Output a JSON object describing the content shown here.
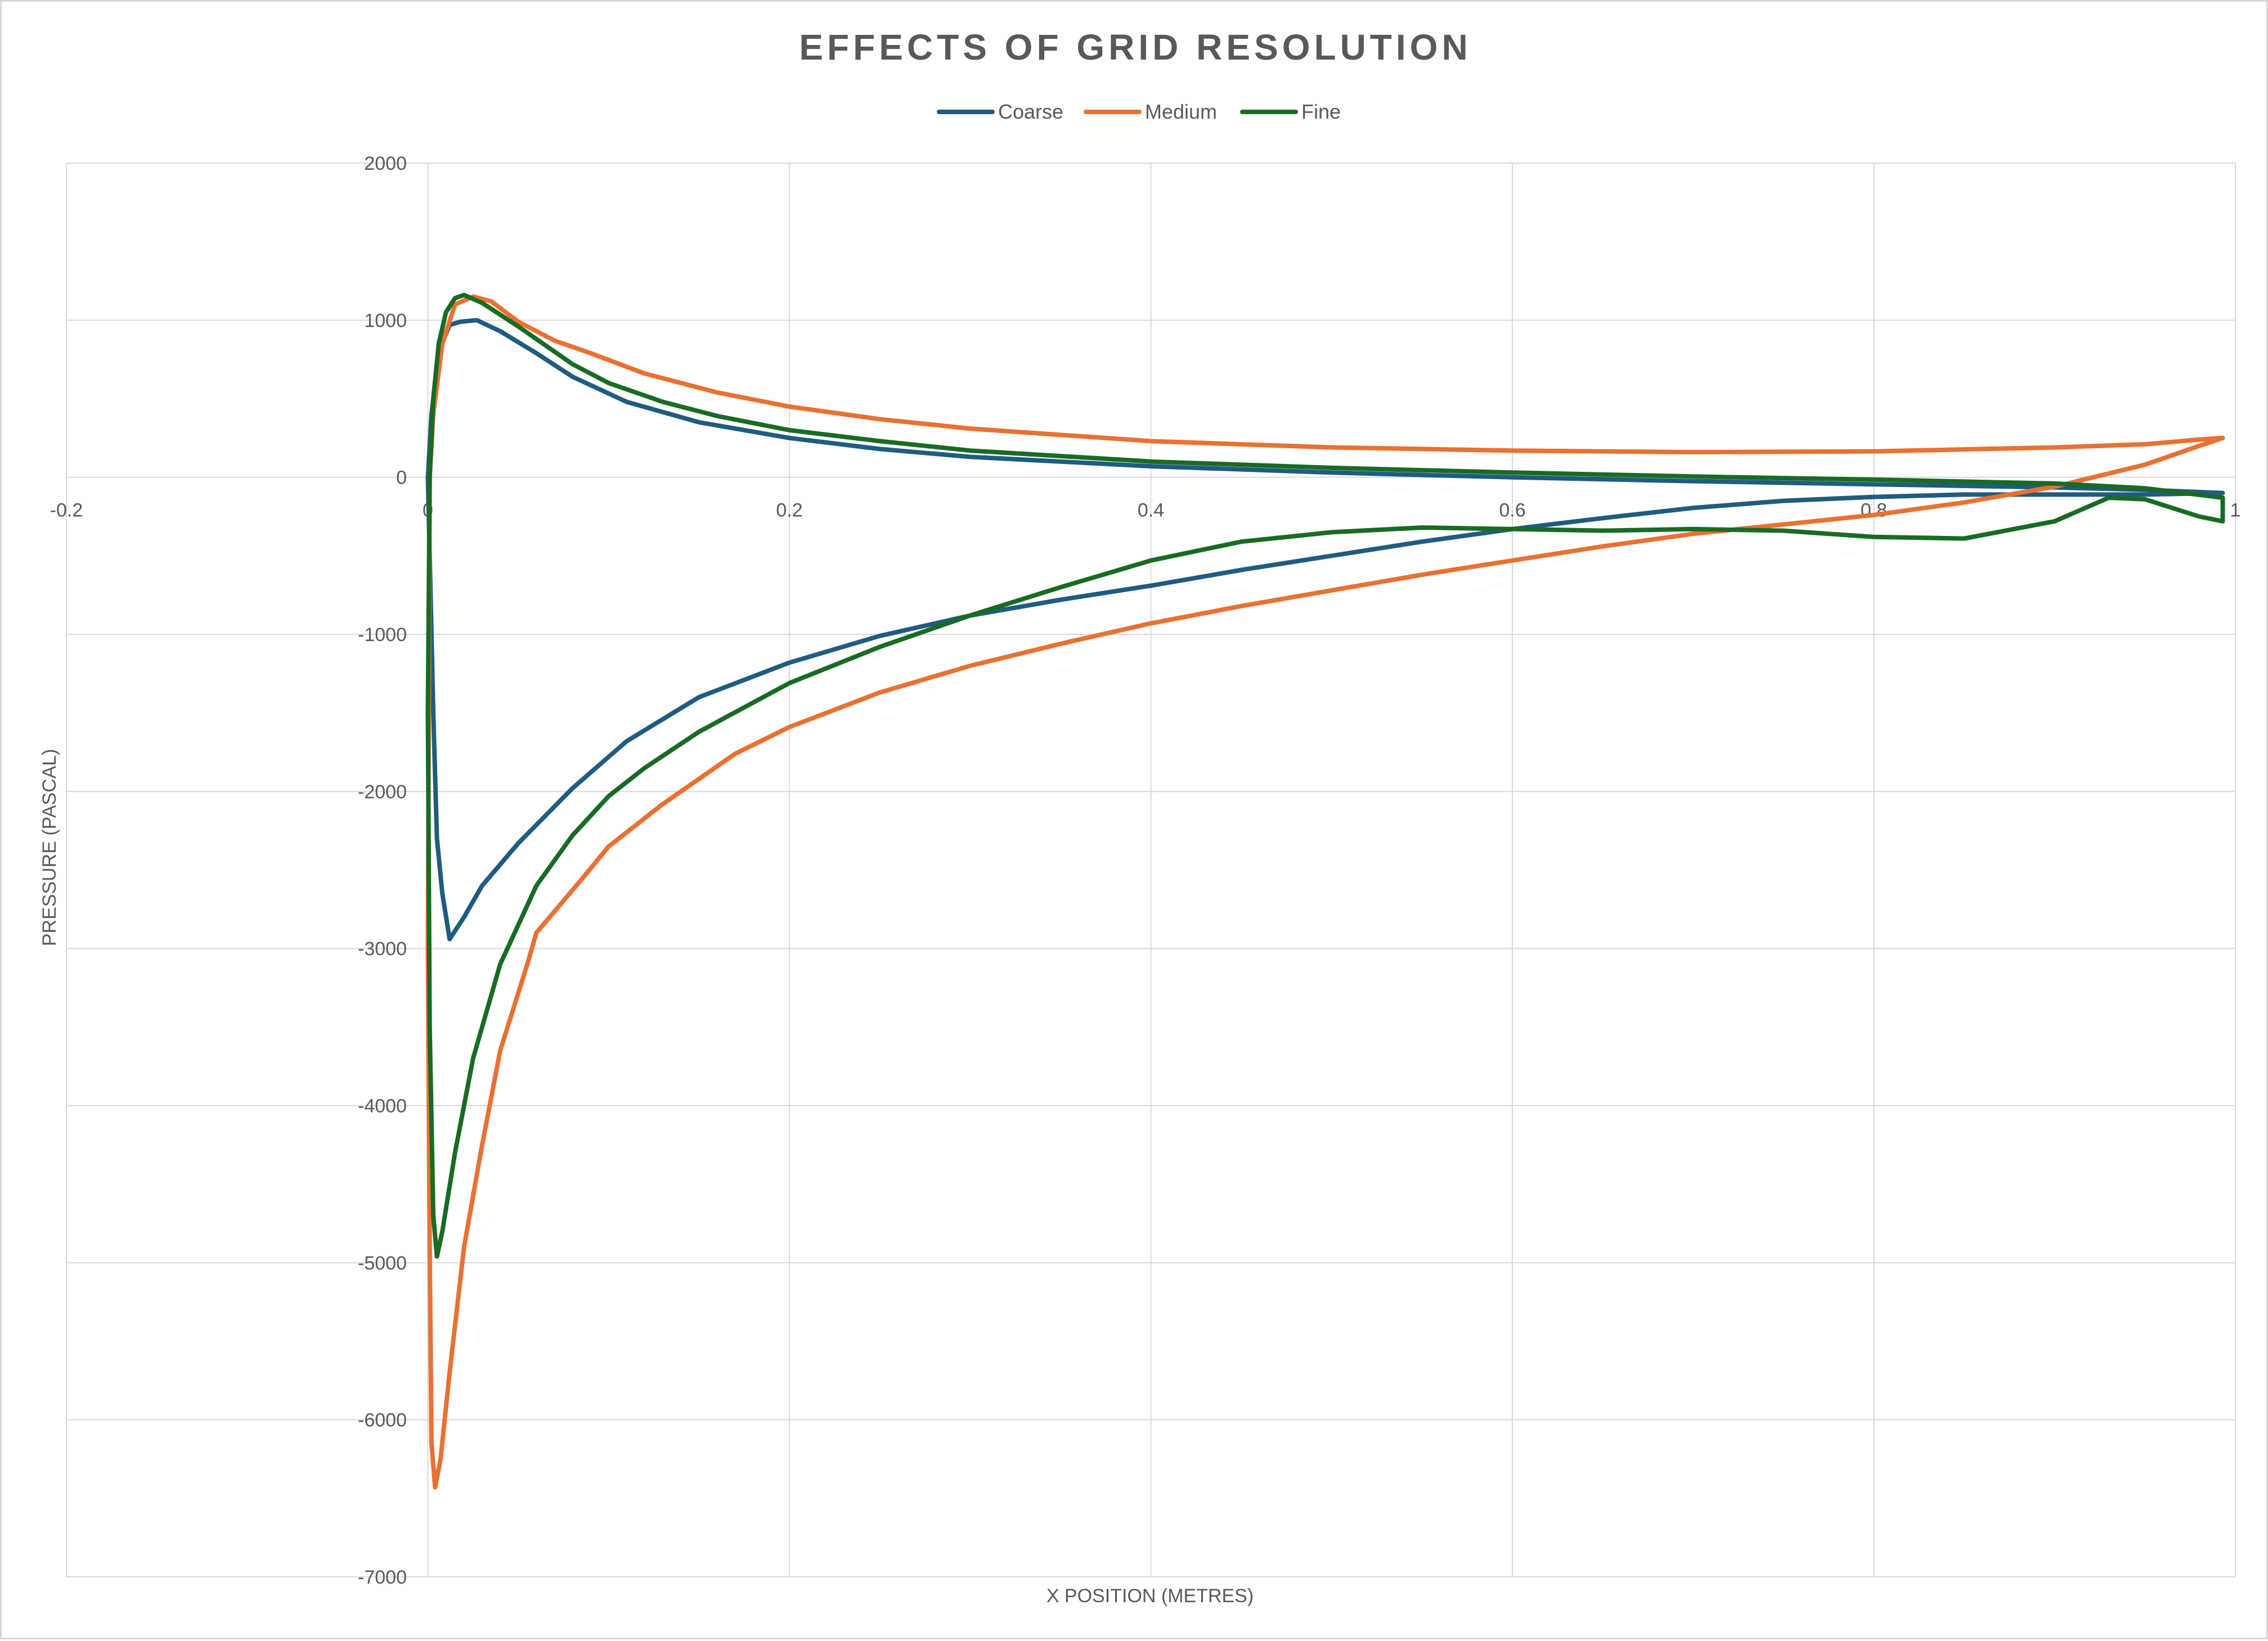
{
  "chart_data": {
    "type": "scatter",
    "title": "EFFECTS OF GRID RESOLUTION",
    "xlabel": "X POSITION (METRES)",
    "ylabel": "PRESSURE (PASCAL)",
    "xlim": [
      -0.2,
      1
    ],
    "ylim": [
      -7000,
      2000
    ],
    "x_ticks": [
      "-0.2",
      "0",
      "0.2",
      "0.4",
      "0.6",
      "0.8",
      "1"
    ],
    "y_ticks": [
      "2000",
      "1000",
      "0",
      "-1000",
      "-2000",
      "-3000",
      "-4000",
      "-5000",
      "-6000",
      "-7000"
    ],
    "grid": true,
    "legend_position": "top",
    "series": [
      {
        "name": "Coarse",
        "color": "#1f5c7f",
        "points": [
          [
            0.993,
            -100
          ],
          [
            0.95,
            -110
          ],
          [
            0.9,
            -110
          ],
          [
            0.85,
            -110
          ],
          [
            0.8,
            -125
          ],
          [
            0.75,
            -150
          ],
          [
            0.7,
            -195
          ],
          [
            0.65,
            -260
          ],
          [
            0.6,
            -330
          ],
          [
            0.55,
            -410
          ],
          [
            0.5,
            -500
          ],
          [
            0.45,
            -590
          ],
          [
            0.4,
            -690
          ],
          [
            0.35,
            -780
          ],
          [
            0.3,
            -880
          ],
          [
            0.25,
            -1010
          ],
          [
            0.2,
            -1180
          ],
          [
            0.15,
            -1400
          ],
          [
            0.11,
            -1680
          ],
          [
            0.08,
            -1980
          ],
          [
            0.05,
            -2330
          ],
          [
            0.03,
            -2600
          ],
          [
            0.02,
            -2800
          ],
          [
            0.012,
            -2940
          ],
          [
            0.008,
            -2650
          ],
          [
            0.005,
            -2300
          ],
          [
            0.003,
            -1500
          ],
          [
            0.001,
            -500
          ],
          [
            0,
            0
          ],
          [
            0.002,
            400
          ],
          [
            0.006,
            800
          ],
          [
            0.012,
            970
          ],
          [
            0.018,
            990
          ],
          [
            0.027,
            1000
          ],
          [
            0.04,
            930
          ],
          [
            0.06,
            790
          ],
          [
            0.08,
            640
          ],
          [
            0.11,
            480
          ],
          [
            0.15,
            350
          ],
          [
            0.2,
            250
          ],
          [
            0.25,
            180
          ],
          [
            0.3,
            130
          ],
          [
            0.4,
            70
          ],
          [
            0.5,
            30
          ],
          [
            0.6,
            0
          ],
          [
            0.7,
            -25
          ],
          [
            0.8,
            -45
          ],
          [
            0.9,
            -65
          ],
          [
            0.95,
            -80
          ],
          [
            0.993,
            -100
          ]
        ]
      },
      {
        "name": "Medium",
        "color": "#e97132",
        "points": [
          [
            0.993,
            250
          ],
          [
            0.98,
            200
          ],
          [
            0.95,
            80
          ],
          [
            0.9,
            -60
          ],
          [
            0.85,
            -160
          ],
          [
            0.8,
            -240
          ],
          [
            0.75,
            -300
          ],
          [
            0.7,
            -360
          ],
          [
            0.65,
            -440
          ],
          [
            0.6,
            -530
          ],
          [
            0.55,
            -620
          ],
          [
            0.5,
            -720
          ],
          [
            0.45,
            -820
          ],
          [
            0.4,
            -930
          ],
          [
            0.35,
            -1060
          ],
          [
            0.3,
            -1200
          ],
          [
            0.25,
            -1370
          ],
          [
            0.2,
            -1590
          ],
          [
            0.17,
            -1760
          ],
          [
            0.13,
            -2080
          ],
          [
            0.1,
            -2350
          ],
          [
            0.085,
            -2560
          ],
          [
            0.06,
            -2900
          ],
          [
            0.055,
            -3100
          ],
          [
            0.04,
            -3650
          ],
          [
            0.03,
            -4250
          ],
          [
            0.02,
            -4900
          ],
          [
            0.012,
            -5700
          ],
          [
            0.007,
            -6250
          ],
          [
            0.004,
            -6430
          ],
          [
            0.002,
            -6150
          ],
          [
            0.001,
            -4900
          ],
          [
            0,
            -3000
          ],
          [
            0.001,
            0
          ],
          [
            0.003,
            400
          ],
          [
            0.008,
            850
          ],
          [
            0.015,
            1100
          ],
          [
            0.025,
            1150
          ],
          [
            0.035,
            1120
          ],
          [
            0.05,
            990
          ],
          [
            0.07,
            870
          ],
          [
            0.09,
            790
          ],
          [
            0.12,
            660
          ],
          [
            0.16,
            540
          ],
          [
            0.2,
            450
          ],
          [
            0.25,
            370
          ],
          [
            0.3,
            310
          ],
          [
            0.4,
            230
          ],
          [
            0.5,
            190
          ],
          [
            0.6,
            170
          ],
          [
            0.7,
            160
          ],
          [
            0.8,
            165
          ],
          [
            0.9,
            190
          ],
          [
            0.95,
            210
          ],
          [
            0.98,
            240
          ],
          [
            0.993,
            250
          ]
        ]
      },
      {
        "name": "Fine",
        "color": "#196b24",
        "points": [
          [
            0.993,
            -280
          ],
          [
            0.98,
            -250
          ],
          [
            0.95,
            -140
          ],
          [
            0.93,
            -130
          ],
          [
            0.9,
            -280
          ],
          [
            0.85,
            -390
          ],
          [
            0.8,
            -380
          ],
          [
            0.75,
            -340
          ],
          [
            0.7,
            -330
          ],
          [
            0.65,
            -340
          ],
          [
            0.6,
            -330
          ],
          [
            0.55,
            -320
          ],
          [
            0.5,
            -350
          ],
          [
            0.45,
            -410
          ],
          [
            0.4,
            -530
          ],
          [
            0.35,
            -700
          ],
          [
            0.3,
            -880
          ],
          [
            0.25,
            -1080
          ],
          [
            0.2,
            -1310
          ],
          [
            0.15,
            -1620
          ],
          [
            0.12,
            -1850
          ],
          [
            0.1,
            -2030
          ],
          [
            0.08,
            -2280
          ],
          [
            0.06,
            -2600
          ],
          [
            0.04,
            -3100
          ],
          [
            0.025,
            -3700
          ],
          [
            0.015,
            -4300
          ],
          [
            0.008,
            -4800
          ],
          [
            0.005,
            -4960
          ],
          [
            0.003,
            -4700
          ],
          [
            0.001,
            -3500
          ],
          [
            0,
            -1500
          ],
          [
            0.001,
            0
          ],
          [
            0.003,
            500
          ],
          [
            0.006,
            850
          ],
          [
            0.01,
            1050
          ],
          [
            0.015,
            1140
          ],
          [
            0.02,
            1160
          ],
          [
            0.03,
            1110
          ],
          [
            0.05,
            960
          ],
          [
            0.08,
            720
          ],
          [
            0.1,
            600
          ],
          [
            0.13,
            480
          ],
          [
            0.16,
            390
          ],
          [
            0.2,
            300
          ],
          [
            0.25,
            230
          ],
          [
            0.3,
            170
          ],
          [
            0.4,
            100
          ],
          [
            0.5,
            60
          ],
          [
            0.6,
            30
          ],
          [
            0.7,
            5
          ],
          [
            0.8,
            -15
          ],
          [
            0.9,
            -40
          ],
          [
            0.95,
            -70
          ],
          [
            0.993,
            -130
          ],
          [
            0.993,
            -280
          ]
        ]
      }
    ]
  }
}
